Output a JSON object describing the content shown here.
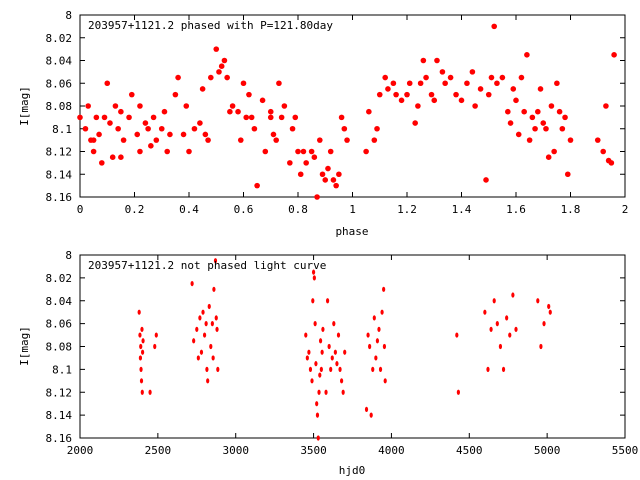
{
  "chart_data": [
    {
      "type": "scatter",
      "title": "203957+1121.2 phased with P=121.80day",
      "xlabel": "phase",
      "ylabel": "I[mag]",
      "xlim": [
        0,
        2
      ],
      "ylim": [
        8.16,
        8.0
      ],
      "y_inverted": true,
      "grid": false,
      "x_ticks": [
        "0",
        "0.2",
        "0.4",
        "0.6",
        "0.8",
        "1",
        "1.2",
        "1.4",
        "1.6",
        "1.8",
        "2"
      ],
      "y_ticks": [
        "8",
        "8.02",
        "8.04",
        "8.06",
        "8.08",
        "8.1",
        "8.12",
        "8.14",
        "8.16"
      ],
      "marker_color": "#ff0000",
      "points": [
        [
          0.0,
          8.09
        ],
        [
          0.02,
          8.1
        ],
        [
          0.03,
          8.08
        ],
        [
          0.04,
          8.11
        ],
        [
          0.05,
          8.12
        ],
        [
          0.06,
          8.09
        ],
        [
          0.07,
          8.105
        ],
        [
          0.08,
          8.13
        ],
        [
          0.09,
          8.09
        ],
        [
          0.1,
          8.06
        ],
        [
          0.11,
          8.095
        ],
        [
          0.12,
          8.125
        ],
        [
          0.13,
          8.08
        ],
        [
          0.14,
          8.1
        ],
        [
          0.15,
          8.085
        ],
        [
          0.16,
          8.11
        ],
        [
          0.18,
          8.09
        ],
        [
          0.19,
          8.07
        ],
        [
          0.21,
          8.105
        ],
        [
          0.22,
          8.08
        ],
        [
          0.24,
          8.095
        ],
        [
          0.25,
          8.1
        ],
        [
          0.26,
          8.115
        ],
        [
          0.27,
          8.09
        ],
        [
          0.28,
          8.11
        ],
        [
          0.3,
          8.1
        ],
        [
          0.31,
          8.085
        ],
        [
          0.32,
          8.12
        ],
        [
          0.33,
          8.105
        ],
        [
          0.35,
          8.07
        ],
        [
          0.36,
          8.055
        ],
        [
          0.38,
          8.105
        ],
        [
          0.39,
          8.08
        ],
        [
          0.4,
          8.12
        ],
        [
          0.42,
          8.1
        ],
        [
          0.44,
          8.095
        ],
        [
          0.45,
          8.065
        ],
        [
          0.46,
          8.105
        ],
        [
          0.47,
          8.11
        ],
        [
          0.48,
          8.055
        ],
        [
          0.5,
          8.03
        ],
        [
          0.51,
          8.05
        ],
        [
          0.52,
          8.045
        ],
        [
          0.53,
          8.04
        ],
        [
          0.54,
          8.055
        ],
        [
          0.55,
          8.085
        ],
        [
          0.56,
          8.08
        ],
        [
          0.58,
          8.085
        ],
        [
          0.59,
          8.11
        ],
        [
          0.6,
          8.06
        ],
        [
          0.61,
          8.09
        ],
        [
          0.62,
          8.07
        ],
        [
          0.63,
          8.09
        ],
        [
          0.64,
          8.1
        ],
        [
          0.65,
          8.15
        ],
        [
          0.67,
          8.075
        ],
        [
          0.68,
          8.12
        ],
        [
          0.7,
          8.085
        ],
        [
          0.71,
          8.105
        ],
        [
          0.72,
          8.11
        ],
        [
          0.73,
          8.06
        ],
        [
          0.74,
          8.09
        ],
        [
          0.75,
          8.08
        ],
        [
          0.77,
          8.13
        ],
        [
          0.78,
          8.1
        ],
        [
          0.79,
          8.09
        ],
        [
          0.8,
          8.12
        ],
        [
          0.81,
          8.14
        ],
        [
          0.82,
          8.12
        ],
        [
          0.83,
          8.13
        ],
        [
          0.85,
          8.12
        ],
        [
          0.86,
          8.125
        ],
        [
          0.87,
          8.16
        ],
        [
          0.88,
          8.11
        ],
        [
          0.89,
          8.14
        ],
        [
          0.9,
          8.145
        ],
        [
          0.91,
          8.135
        ],
        [
          0.92,
          8.12
        ],
        [
          0.93,
          8.145
        ],
        [
          0.94,
          8.15
        ],
        [
          0.95,
          8.14
        ],
        [
          0.96,
          8.09
        ],
        [
          0.97,
          8.1
        ],
        [
          0.98,
          8.11
        ],
        [
          1.05,
          8.12
        ],
        [
          1.06,
          8.085
        ],
        [
          1.08,
          8.11
        ],
        [
          1.09,
          8.1
        ],
        [
          1.1,
          8.07
        ],
        [
          1.12,
          8.055
        ],
        [
          1.13,
          8.065
        ],
        [
          1.15,
          8.06
        ],
        [
          1.16,
          8.07
        ],
        [
          1.18,
          8.075
        ],
        [
          1.2,
          8.07
        ],
        [
          1.21,
          8.06
        ],
        [
          1.23,
          8.095
        ],
        [
          1.24,
          8.08
        ],
        [
          1.25,
          8.06
        ],
        [
          1.26,
          8.04
        ],
        [
          1.27,
          8.055
        ],
        [
          1.29,
          8.07
        ],
        [
          1.3,
          8.075
        ],
        [
          1.31,
          8.04
        ],
        [
          1.33,
          8.05
        ],
        [
          1.34,
          8.06
        ],
        [
          1.36,
          8.055
        ],
        [
          1.38,
          8.07
        ],
        [
          1.4,
          8.075
        ],
        [
          1.42,
          8.06
        ],
        [
          1.44,
          8.05
        ],
        [
          1.45,
          8.08
        ],
        [
          1.47,
          8.065
        ],
        [
          1.49,
          8.145
        ],
        [
          1.5,
          8.07
        ],
        [
          1.51,
          8.055
        ],
        [
          1.52,
          8.01
        ],
        [
          1.53,
          8.06
        ],
        [
          1.55,
          8.055
        ],
        [
          1.57,
          8.085
        ],
        [
          1.58,
          8.095
        ],
        [
          1.59,
          8.065
        ],
        [
          1.6,
          8.075
        ],
        [
          1.61,
          8.105
        ],
        [
          1.62,
          8.055
        ],
        [
          1.63,
          8.085
        ],
        [
          1.64,
          8.035
        ],
        [
          1.65,
          8.11
        ],
        [
          1.66,
          8.09
        ],
        [
          1.67,
          8.1
        ],
        [
          1.68,
          8.085
        ],
        [
          1.69,
          8.065
        ],
        [
          1.7,
          8.095
        ],
        [
          1.71,
          8.1
        ],
        [
          1.72,
          8.125
        ],
        [
          1.73,
          8.08
        ],
        [
          1.74,
          8.12
        ],
        [
          1.75,
          8.06
        ],
        [
          1.76,
          8.085
        ],
        [
          1.77,
          8.1
        ],
        [
          1.78,
          8.09
        ],
        [
          1.79,
          8.14
        ],
        [
          1.8,
          8.11
        ],
        [
          1.9,
          8.11
        ],
        [
          1.92,
          8.12
        ],
        [
          1.93,
          8.08
        ],
        [
          1.94,
          8.128
        ],
        [
          1.95,
          8.13
        ],
        [
          1.96,
          8.035
        ],
        [
          0.15,
          8.125
        ],
        [
          0.05,
          8.11
        ],
        [
          0.22,
          8.12
        ],
        [
          0.7,
          8.09
        ]
      ]
    },
    {
      "type": "scatter",
      "title": "203957+1121.2 not phased light curve",
      "xlabel": "hjd0",
      "ylabel": "I[mag]",
      "xlim": [
        2000,
        5500
      ],
      "ylim": [
        8.16,
        8.0
      ],
      "y_inverted": true,
      "grid": false,
      "x_ticks": [
        "2000",
        "2500",
        "3000",
        "3500",
        "4000",
        "4500",
        "5000",
        "5500"
      ],
      "y_ticks": [
        "8",
        "8.02",
        "8.04",
        "8.06",
        "8.08",
        "8.1",
        "8.12",
        "8.14",
        "8.16"
      ],
      "marker_color": "#ff0000",
      "points": [
        [
          2380,
          8.05
        ],
        [
          2385,
          8.07
        ],
        [
          2388,
          8.09
        ],
        [
          2390,
          8.08
        ],
        [
          2392,
          8.1
        ],
        [
          2395,
          8.11
        ],
        [
          2398,
          8.065
        ],
        [
          2400,
          8.12
        ],
        [
          2402,
          8.085
        ],
        [
          2405,
          8.075
        ],
        [
          2450,
          8.12
        ],
        [
          2480,
          8.08
        ],
        [
          2490,
          8.07
        ],
        [
          2720,
          8.025
        ],
        [
          2730,
          8.075
        ],
        [
          2750,
          8.065
        ],
        [
          2760,
          8.09
        ],
        [
          2770,
          8.055
        ],
        [
          2780,
          8.085
        ],
        [
          2790,
          8.05
        ],
        [
          2800,
          8.07
        ],
        [
          2810,
          8.06
        ],
        [
          2815,
          8.1
        ],
        [
          2820,
          8.11
        ],
        [
          2830,
          8.045
        ],
        [
          2840,
          8.08
        ],
        [
          2850,
          8.06
        ],
        [
          2855,
          8.09
        ],
        [
          2860,
          8.03
        ],
        [
          2870,
          8.005
        ],
        [
          2875,
          8.055
        ],
        [
          2880,
          8.065
        ],
        [
          2885,
          8.1
        ],
        [
          3450,
          8.07
        ],
        [
          3460,
          8.09
        ],
        [
          3470,
          8.085
        ],
        [
          3480,
          8.1
        ],
        [
          3490,
          8.11
        ],
        [
          3495,
          8.04
        ],
        [
          3500,
          8.015
        ],
        [
          3505,
          8.02
        ],
        [
          3510,
          8.06
        ],
        [
          3515,
          8.095
        ],
        [
          3520,
          8.13
        ],
        [
          3525,
          8.14
        ],
        [
          3530,
          8.16
        ],
        [
          3535,
          8.12
        ],
        [
          3540,
          8.105
        ],
        [
          3545,
          8.075
        ],
        [
          3550,
          8.1
        ],
        [
          3555,
          8.085
        ],
        [
          3560,
          8.065
        ],
        [
          3580,
          8.12
        ],
        [
          3590,
          8.04
        ],
        [
          3600,
          8.08
        ],
        [
          3610,
          8.1
        ],
        [
          3620,
          8.09
        ],
        [
          3630,
          8.06
        ],
        [
          3640,
          8.085
        ],
        [
          3650,
          8.095
        ],
        [
          3660,
          8.07
        ],
        [
          3670,
          8.1
        ],
        [
          3680,
          8.11
        ],
        [
          3690,
          8.12
        ],
        [
          3700,
          8.085
        ],
        [
          3840,
          8.135
        ],
        [
          3850,
          8.07
        ],
        [
          3860,
          8.08
        ],
        [
          3870,
          8.14
        ],
        [
          3880,
          8.1
        ],
        [
          3890,
          8.055
        ],
        [
          3900,
          8.09
        ],
        [
          3910,
          8.075
        ],
        [
          3920,
          8.065
        ],
        [
          3930,
          8.1
        ],
        [
          3940,
          8.05
        ],
        [
          3950,
          8.03
        ],
        [
          3955,
          8.08
        ],
        [
          3960,
          8.11
        ],
        [
          4420,
          8.07
        ],
        [
          4430,
          8.12
        ],
        [
          4600,
          8.05
        ],
        [
          4620,
          8.1
        ],
        [
          4640,
          8.065
        ],
        [
          4660,
          8.04
        ],
        [
          4680,
          8.06
        ],
        [
          4700,
          8.08
        ],
        [
          4720,
          8.1
        ],
        [
          4740,
          8.055
        ],
        [
          4760,
          8.07
        ],
        [
          4780,
          8.035
        ],
        [
          4800,
          8.065
        ],
        [
          4940,
          8.04
        ],
        [
          4960,
          8.08
        ],
        [
          4980,
          8.06
        ],
        [
          5010,
          8.045
        ],
        [
          5020,
          8.05
        ]
      ]
    }
  ]
}
